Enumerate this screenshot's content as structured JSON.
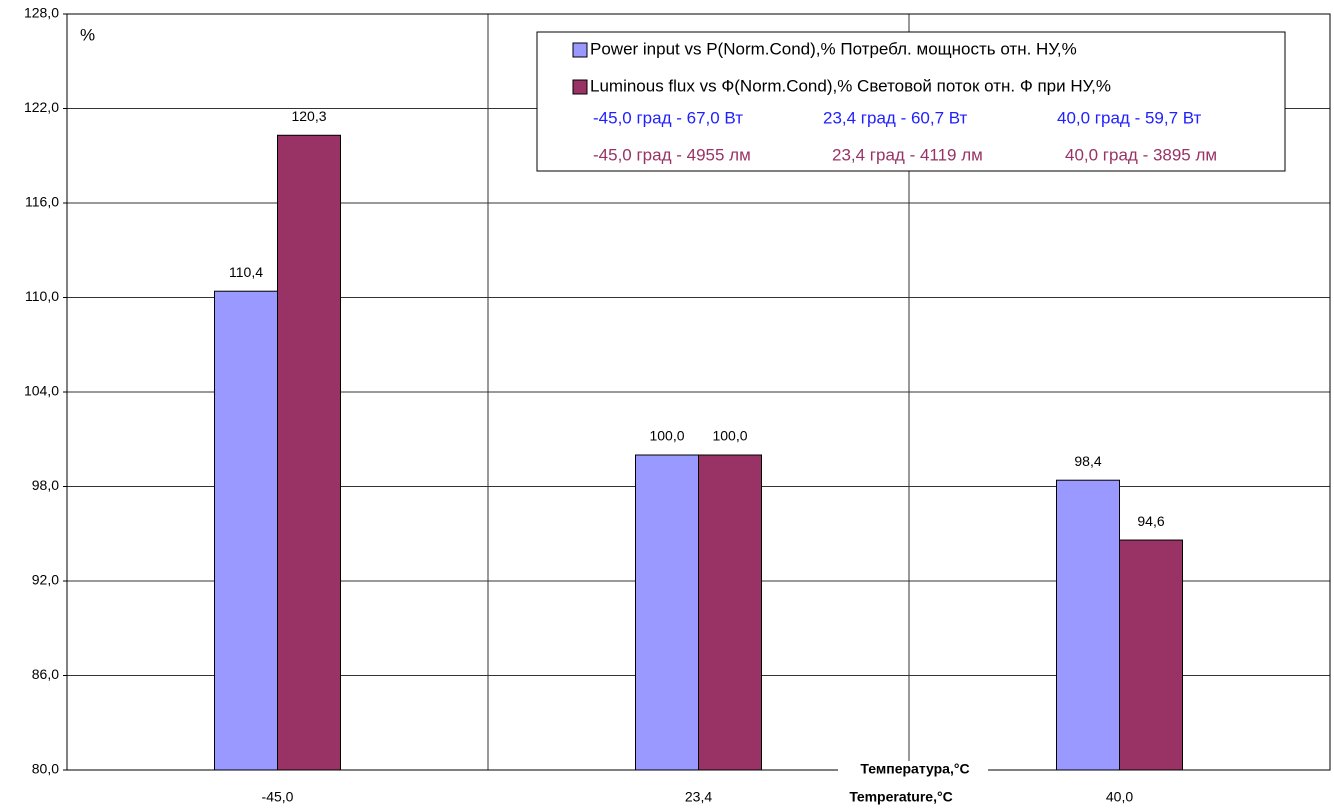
{
  "chart_data": {
    "type": "bar",
    "y_label": "%",
    "x_label": [
      "Температура,°C",
      "Temperature,°C"
    ],
    "categories": [
      "-45,0",
      "23,4",
      "40,0"
    ],
    "series": [
      {
        "name": "Power input vs P(Norm.Cond),% Потребл. мощность отн. НУ,%",
        "color": "#9999ff",
        "values": [
          110.4,
          100.0,
          98.4
        ],
        "value_labels": [
          "110,4",
          "100,0",
          "98,4"
        ]
      },
      {
        "name": "Luminous flux vs Ф(Norm.Cond),% Световой поток отн. Ф при НУ,%",
        "color": "#993366",
        "values": [
          120.3,
          100.0,
          94.6
        ],
        "value_labels": [
          "120,3",
          "100,0",
          "94,6"
        ]
      }
    ],
    "annotations": [
      {
        "text": "-45,0 град - 67,0 Вт",
        "color": "#1f1fff"
      },
      {
        "text": "23,4 град - 60,7 Вт",
        "color": "#1f1fff"
      },
      {
        "text": "40,0 град - 59,7 Вт",
        "color": "#1f1fff"
      },
      {
        "text": "-45,0 град - 4955 лм",
        "color": "#993366"
      },
      {
        "text": "23,4 град - 4119 лм",
        "color": "#993366"
      },
      {
        "text": "40,0 град - 3895 лм",
        "color": "#993366"
      }
    ],
    "ylim": [
      80,
      128
    ],
    "yticks": [
      {
        "value": 80,
        "label": "80,0"
      },
      {
        "value": 86,
        "label": "86,0"
      },
      {
        "value": 92,
        "label": "92,0"
      },
      {
        "value": 98,
        "label": "98,0"
      },
      {
        "value": 104,
        "label": "104,0"
      },
      {
        "value": 110,
        "label": "110,0"
      },
      {
        "value": 116,
        "label": "116,0"
      },
      {
        "value": 122,
        "label": "122,0"
      },
      {
        "value": 128,
        "label": "128,0"
      }
    ],
    "grid": true
  }
}
